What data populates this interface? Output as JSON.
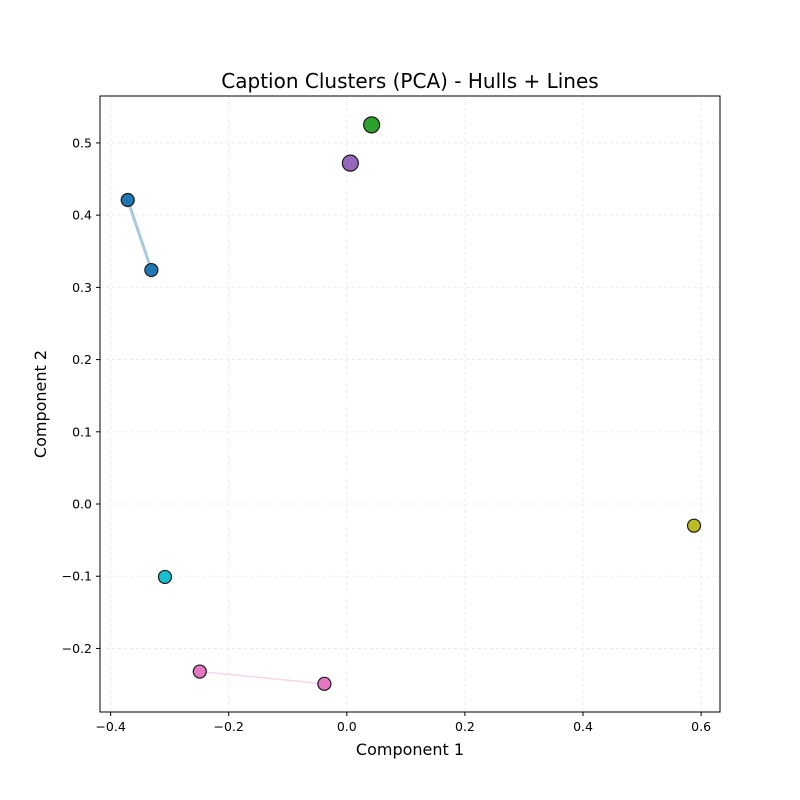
{
  "chart_data": {
    "type": "scatter",
    "title": "Caption Clusters (PCA) - Hulls + Lines",
    "xlabel": "Component 1",
    "ylabel": "Component 2",
    "xlim": [
      -0.418,
      0.632
    ],
    "ylim": [
      -0.288,
      0.565
    ],
    "xticks": [
      -0.4,
      -0.2,
      0.0,
      0.2,
      0.4,
      0.6
    ],
    "xtick_labels": [
      "−0.4",
      "−0.2",
      "0.0",
      "0.2",
      "0.4",
      "0.6"
    ],
    "yticks": [
      -0.2,
      -0.1,
      0.0,
      0.1,
      0.2,
      0.3,
      0.4,
      0.5
    ],
    "ytick_labels": [
      "−0.2",
      "−0.1",
      "0.0",
      "0.1",
      "0.2",
      "0.3",
      "0.4",
      "0.5"
    ],
    "grid": true,
    "series": [
      {
        "color": "#1f77b4",
        "line_color": "#aac9e0",
        "points": [
          {
            "x": -0.371,
            "y": 0.421
          },
          {
            "x": -0.331,
            "y": 0.324
          }
        ]
      },
      {
        "color": "#2ca02c",
        "points": [
          {
            "x": 0.042,
            "y": 0.525
          }
        ]
      },
      {
        "color": "#9467bd",
        "points": [
          {
            "x": 0.006,
            "y": 0.472
          }
        ]
      },
      {
        "color": "#bcbd22",
        "points": [
          {
            "x": 0.588,
            "y": -0.03
          }
        ]
      },
      {
        "color": "#17becf",
        "points": [
          {
            "x": -0.308,
            "y": -0.101
          }
        ]
      },
      {
        "color": "#e377c2",
        "line_color": "#f6d5ec",
        "points": [
          {
            "x": -0.249,
            "y": -0.232
          },
          {
            "x": -0.038,
            "y": -0.249
          }
        ]
      }
    ]
  }
}
